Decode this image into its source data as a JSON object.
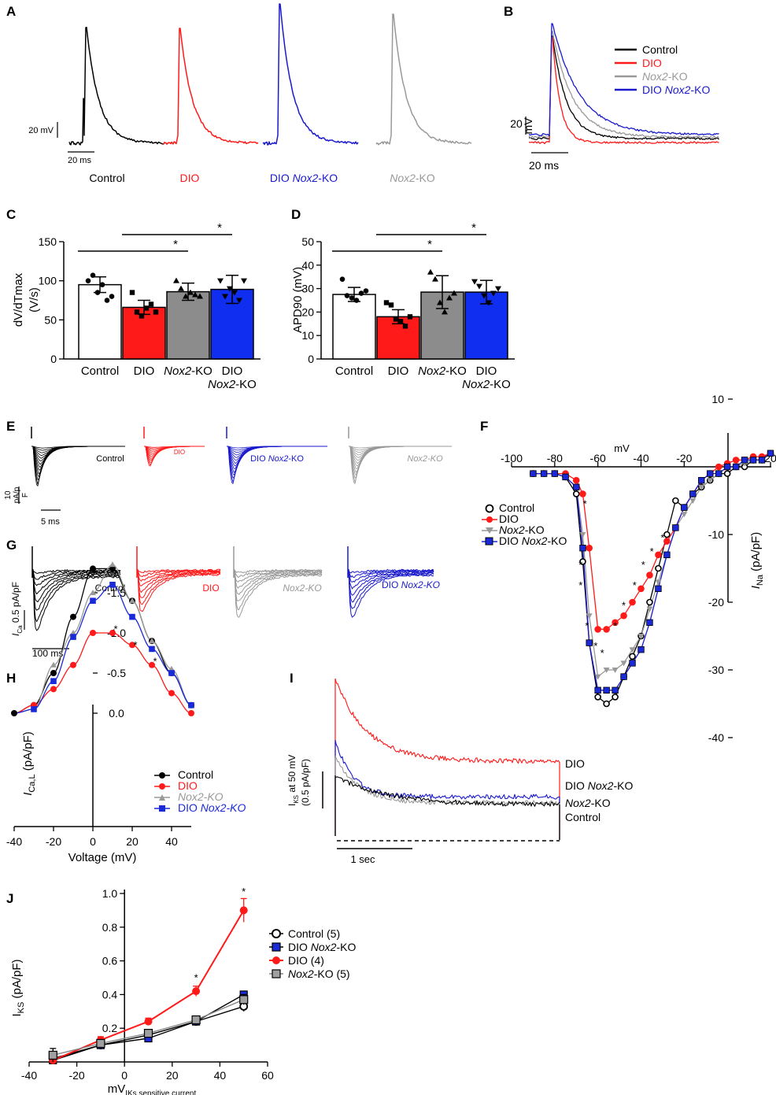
{
  "colors": {
    "control": "#000000",
    "dio": "#ff1a1a",
    "dio_nox2ko": "#1a1acc",
    "nox2ko": "#999999",
    "bar_blue": "#0f2ef0",
    "bar_gray": "#8c8c8c",
    "square_blue": "#1a2ad8",
    "square_gray": "#a0a0a0"
  },
  "panels": {
    "A": {
      "label": "A",
      "scale_v": "20 mV",
      "scale_t": "20 ms",
      "trace_labels": [
        {
          "text": "Control",
          "italic_part": ""
        },
        {
          "text": "DIO",
          "italic_part": ""
        },
        {
          "text": "DIO ",
          "italic_part": "Nox2",
          "suffix": "-KO"
        },
        {
          "text": "",
          "italic_part": "Nox2",
          "suffix": "-KO"
        }
      ]
    },
    "B": {
      "label": "B",
      "scale_v_num": "20",
      "scale_v_unit": "mV",
      "scale_t": "20 ms",
      "legend": [
        {
          "prefix": "Control",
          "italic": "",
          "suffix": ""
        },
        {
          "prefix": "DIO",
          "italic": "",
          "suffix": ""
        },
        {
          "prefix": "",
          "italic": "Nox2",
          "suffix": "-KO"
        },
        {
          "prefix": "DIO ",
          "italic": "Nox2",
          "suffix": "-KO"
        }
      ]
    },
    "C": {
      "label": "C",
      "star": "*"
    },
    "D": {
      "label": "D",
      "star": "*"
    },
    "E": {
      "label": "E",
      "scale_v": "10 pA/p F",
      "scale_v_lines": [
        "10",
        "pA/p",
        "F"
      ],
      "scale_t": "5 ms",
      "trace_labels": [
        {
          "prefix": "Control",
          "italic": "",
          "suffix": ""
        },
        {
          "prefix": "DIO",
          "italic": "",
          "suffix": ""
        },
        {
          "prefix": "DIO ",
          "italic": "Nox2",
          "suffix": "-KO"
        },
        {
          "prefix": "",
          "italic": "Nox2",
          "suffix": "-KO"
        }
      ]
    },
    "F": {
      "label": "F",
      "star": "*"
    },
    "G": {
      "label": "G",
      "scale_v_sym": "I",
      "scale_v_sub": "Ca",
      "scale_v_val": "0.5 pA/pF",
      "scale_t": "100 ms",
      "trace_labels": [
        {
          "prefix": "Control",
          "italic": "",
          "suffix": ""
        },
        {
          "prefix": "DIO",
          "italic": "",
          "suffix": ""
        },
        {
          "prefix": "",
          "italic": "Nox2-KO",
          "suffix": ""
        },
        {
          "prefix": "DIO ",
          "italic": "Nox2-KO",
          "suffix": ""
        }
      ]
    },
    "H": {
      "label": "H",
      "star": "*"
    },
    "I": {
      "label": "I",
      "scale_label_sym": "I",
      "scale_label_sub": "KS",
      "scale_label_rest": " at 50 mV",
      "scale_label_val": "(0.5 pA/pF)",
      "scale_t": "1 sec",
      "trace_labels": [
        {
          "prefix": "DIO",
          "italic": "",
          "suffix": ""
        },
        {
          "prefix": "DIO ",
          "italic": "Nox2",
          "suffix": "-KO"
        },
        {
          "prefix": "",
          "italic": "Nox2",
          "suffix": "-KO"
        },
        {
          "prefix": "Control",
          "italic": "",
          "suffix": ""
        }
      ]
    },
    "J": {
      "label": "J",
      "star": "*"
    }
  },
  "chart_data": [
    {
      "panel": "C",
      "type": "bar",
      "categories": [
        "Control",
        "DIO",
        "Nox2-KO",
        "DIO Nox2-KO"
      ],
      "values": [
        95,
        66,
        86,
        89
      ],
      "errors": [
        10,
        9,
        11,
        18
      ],
      "points": [
        [
          100,
          107,
          85,
          95,
          75,
          80
        ],
        [
          85,
          60,
          55,
          65,
          70,
          60
        ],
        [
          100,
          90,
          80,
          85,
          82,
          80
        ],
        [
          100,
          80,
          90,
          85,
          75,
          100
        ]
      ],
      "ylabel_lines": [
        "dV/dTmax",
        "(V/s)"
      ],
      "yticks": [
        0,
        50,
        100,
        150
      ],
      "ylim": [
        0,
        150
      ],
      "significance": [
        {
          "from": 0,
          "to": 2,
          "label": "*"
        },
        {
          "from": 1,
          "to": 3,
          "label": "*"
        }
      ]
    },
    {
      "panel": "D",
      "type": "bar",
      "categories": [
        "Control",
        "DIO",
        "Nox2-KO",
        "DIO Nox2-KO"
      ],
      "values": [
        27.5,
        18,
        28.5,
        28.5
      ],
      "errors": [
        3,
        3,
        7,
        5
      ],
      "points": [
        [
          34,
          27,
          26,
          25,
          28,
          29
        ],
        [
          24,
          23,
          17,
          16,
          14,
          18
        ],
        [
          37,
          34,
          24,
          20,
          26,
          28
        ],
        [
          33,
          31,
          27,
          24,
          28,
          30
        ]
      ],
      "ylabel": "APD90 (mV)",
      "yticks": [
        0,
        10,
        20,
        30,
        40,
        50
      ],
      "ylim": [
        0,
        50
      ],
      "significance": [
        {
          "from": 0,
          "to": 2,
          "label": "*"
        },
        {
          "from": 1,
          "to": 3,
          "label": "*"
        }
      ]
    },
    {
      "panel": "F",
      "type": "line",
      "xlabel": "mV",
      "ylabel_sym": "I",
      "ylabel_sub": "Na",
      "ylabel_rest": " (pA/pF)",
      "xticks": [
        -100,
        -80,
        -60,
        -40,
        -20,
        20
      ],
      "xtick_labels": [
        "-100",
        "-80",
        "-60",
        "-40",
        "-20",
        "20"
      ],
      "yticks": [
        10,
        -10,
        -20,
        -30,
        -40
      ],
      "xlim": [
        -100,
        20
      ],
      "ylim": [
        -40,
        10
      ],
      "x": [
        -90,
        -85,
        -80,
        -75,
        -70,
        -67,
        -64,
        -60,
        -56,
        -52,
        -48,
        -44,
        -40,
        -36,
        -32,
        -28,
        -24,
        -20,
        -16,
        -12,
        -8,
        -4,
        0,
        4,
        8,
        12,
        16,
        20
      ],
      "series": [
        {
          "name": "Control",
          "marker": "open-circle",
          "values": [
            -1,
            -1,
            -1,
            -1.5,
            -4,
            -14,
            -26,
            -34,
            -35,
            -34,
            -31,
            -28,
            -25,
            -20,
            -15,
            -10,
            -5,
            -6,
            -4,
            -3,
            -2,
            -1,
            -1,
            0,
            0,
            1,
            1,
            2
          ]
        },
        {
          "name": "DIO",
          "marker": "filled-circle-red",
          "values": [
            -1,
            -1,
            -1,
            -1,
            -2,
            -4,
            -12,
            -24,
            -24,
            -23,
            -22,
            -20,
            -18,
            -16,
            -13,
            -11,
            -9,
            -6,
            -4,
            -2,
            -1,
            0,
            0.5,
            1,
            1,
            1.5,
            1.5,
            2
          ]
        },
        {
          "name": "Nox2-KO",
          "marker": "triangle-down",
          "values": [
            -1,
            -1,
            -1,
            -1.5,
            -3,
            -10,
            -22,
            -31,
            -30,
            -30,
            -29,
            -27,
            -25,
            -21,
            -17,
            -13,
            -9,
            -7,
            -5,
            -3,
            -2,
            -1,
            0,
            0,
            0.5,
            1,
            1,
            2
          ]
        },
        {
          "name": "DIO Nox2-KO",
          "marker": "square-blue",
          "values": [
            -1,
            -1,
            -1,
            -1.5,
            -3,
            -12,
            -26,
            -33,
            -33,
            -33,
            -31,
            -29,
            -27,
            -23,
            -18,
            -13,
            -9,
            -6,
            -4,
            -2,
            -1,
            -1,
            0,
            0,
            1,
            1,
            1,
            2
          ]
        }
      ],
      "stars": [
        [
          -66,
          -6
        ],
        [
          -68,
          -15
        ],
        [
          -68,
          -18
        ],
        [
          -65,
          -24
        ],
        [
          -61,
          -27
        ],
        [
          -58,
          -28
        ],
        [
          -52,
          -24
        ],
        [
          -48,
          -21
        ],
        [
          -43,
          -18
        ],
        [
          -39,
          -15
        ],
        [
          -35,
          -13
        ],
        [
          -30,
          -11
        ]
      ]
    },
    {
      "panel": "H",
      "type": "line",
      "xlabel": "Voltage (mV)",
      "ylabel_sym": "I",
      "ylabel_sub": "Ca,L",
      "ylabel_rest": " (pA/pF)",
      "xticks": [
        -40,
        -20,
        0,
        20,
        40
      ],
      "yticks": [
        0.0,
        -0.5,
        -1.0,
        -1.5
      ],
      "ytick_labels": [
        "0.0",
        "-0.5",
        "-1.0",
        "-1.5"
      ],
      "xlim": [
        -40,
        50
      ],
      "ylim": [
        -1.85,
        0.1
      ],
      "x": [
        -40,
        -30,
        -20,
        -10,
        0,
        10,
        20,
        30,
        40,
        50
      ],
      "series": [
        {
          "name": "Control",
          "marker": "circle-black",
          "values": [
            0,
            -0.1,
            -0.5,
            -1.2,
            -1.8,
            -1.8,
            -1.4,
            -0.9,
            -0.5,
            -0.1
          ]
        },
        {
          "name": "DIO",
          "marker": "circle-red",
          "values": [
            0,
            -0.1,
            -0.3,
            -0.6,
            -1.0,
            -1.0,
            -0.85,
            -0.6,
            -0.25,
            0
          ]
        },
        {
          "name": "Nox2-KO",
          "marker": "triangle-gray",
          "values": [
            0,
            -0.05,
            -0.6,
            -1.0,
            -1.5,
            -1.85,
            -1.4,
            -0.9,
            -0.55,
            -0.1
          ]
        },
        {
          "name": "DIO Nox2-KO",
          "marker": "square-blue",
          "values": [
            0,
            -0.05,
            -0.4,
            -0.95,
            -1.4,
            -1.6,
            -1.2,
            -0.8,
            -0.5,
            -0.1
          ]
        }
      ],
      "stars": [
        [
          10,
          -0.75
        ],
        [
          20,
          -0.55
        ],
        [
          30,
          -0.35
        ]
      ]
    },
    {
      "panel": "J",
      "type": "line",
      "xlabel_sym": "mV",
      "xlabel_sub": "IKs sensitive current",
      "ylabel_sym": "I",
      "ylabel_sub": "KS",
      "ylabel_rest": " (pA/pF)",
      "xticks": [
        -40,
        -20,
        0,
        20,
        40,
        60
      ],
      "yticks": [
        0.2,
        0.4,
        0.6,
        0.8,
        1.0
      ],
      "ytick_labels": [
        "0.2",
        "0.4",
        "0.6",
        "0.8",
        "1.0"
      ],
      "xlim": [
        -40,
        60
      ],
      "ylim": [
        0,
        1.0
      ],
      "x": [
        -30,
        -10,
        10,
        30,
        50
      ],
      "series": [
        {
          "name": "Control (5)",
          "marker": "open-circle",
          "values": [
            0.02,
            0.1,
            0.16,
            0.24,
            0.33
          ],
          "errors": [
            0.03,
            0.02,
            0.02,
            0.02,
            0.03
          ]
        },
        {
          "name": "DIO Nox2-KO",
          "marker": "square-blue",
          "values": [
            0.01,
            0.1,
            0.14,
            0.24,
            0.4
          ],
          "errors": [
            0.02,
            0.02,
            0.02,
            0.02,
            0.02
          ]
        },
        {
          "name": "DIO (4)",
          "marker": "circle-red",
          "values": [
            0.01,
            0.13,
            0.24,
            0.42,
            0.9
          ],
          "errors": [
            0.02,
            0.02,
            0.02,
            0.03,
            0.07
          ]
        },
        {
          "name": "Nox2-KO (5)",
          "marker": "square-gray",
          "values": [
            0.04,
            0.11,
            0.17,
            0.25,
            0.37
          ],
          "errors": [
            0.04,
            0.02,
            0.02,
            0.02,
            0.03
          ]
        }
      ],
      "stars": [
        [
          30,
          0.48
        ],
        [
          50,
          0.99
        ]
      ]
    }
  ]
}
